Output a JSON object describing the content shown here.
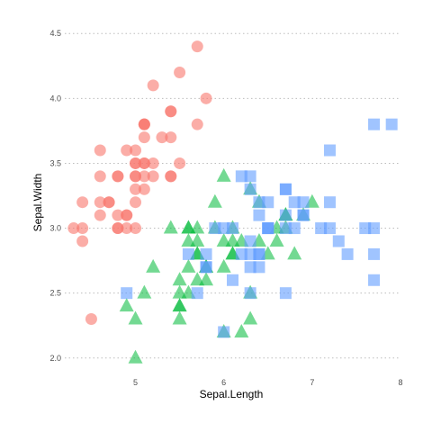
{
  "chart_data": {
    "type": "scatter",
    "title": "",
    "xlabel": "Sepal.Length",
    "ylabel": "Sepal.Width",
    "xlim": [
      4.2,
      8.0
    ],
    "ylim": [
      1.95,
      4.55
    ],
    "x_ticks": [
      "5",
      "6",
      "7",
      "8"
    ],
    "y_ticks": [
      "2.0",
      "2.5",
      "3.0",
      "3.5",
      "4.0",
      "4.5"
    ],
    "grid": {
      "horizontal": true,
      "vertical": false,
      "style": "dotted"
    },
    "legend": "none",
    "series": [
      {
        "color": "#F8766D",
        "marker": "circle",
        "opacity": 0.6,
        "points": [
          [
            5.1,
            3.5
          ],
          [
            4.9,
            3.0
          ],
          [
            4.7,
            3.2
          ],
          [
            4.6,
            3.1
          ],
          [
            5.0,
            3.6
          ],
          [
            5.4,
            3.9
          ],
          [
            4.6,
            3.4
          ],
          [
            5.0,
            3.4
          ],
          [
            4.4,
            2.9
          ],
          [
            4.9,
            3.1
          ],
          [
            5.4,
            3.7
          ],
          [
            4.8,
            3.4
          ],
          [
            4.8,
            3.0
          ],
          [
            4.3,
            3.0
          ],
          [
            5.8,
            4.0
          ],
          [
            5.7,
            4.4
          ],
          [
            5.4,
            3.9
          ],
          [
            5.1,
            3.5
          ],
          [
            5.7,
            3.8
          ],
          [
            5.1,
            3.8
          ],
          [
            5.4,
            3.4
          ],
          [
            5.1,
            3.7
          ],
          [
            4.6,
            3.6
          ],
          [
            5.1,
            3.3
          ],
          [
            4.8,
            3.4
          ],
          [
            5.0,
            3.0
          ],
          [
            5.0,
            3.4
          ],
          [
            5.2,
            3.5
          ],
          [
            5.2,
            3.4
          ],
          [
            4.7,
            3.2
          ],
          [
            4.8,
            3.1
          ],
          [
            5.4,
            3.4
          ],
          [
            5.2,
            4.1
          ],
          [
            5.5,
            4.2
          ],
          [
            4.9,
            3.1
          ],
          [
            5.0,
            3.2
          ],
          [
            5.5,
            3.5
          ],
          [
            4.9,
            3.6
          ],
          [
            4.4,
            3.0
          ],
          [
            5.1,
            3.4
          ],
          [
            5.0,
            3.5
          ],
          [
            4.5,
            2.3
          ],
          [
            4.4,
            3.2
          ],
          [
            5.0,
            3.5
          ],
          [
            5.1,
            3.8
          ],
          [
            4.8,
            3.0
          ],
          [
            5.1,
            3.8
          ],
          [
            4.6,
            3.2
          ],
          [
            5.3,
            3.7
          ],
          [
            5.0,
            3.3
          ]
        ]
      },
      {
        "color": "#00BA38",
        "marker": "triangle",
        "opacity": 0.55,
        "points": [
          [
            7.0,
            3.2
          ],
          [
            6.4,
            3.2
          ],
          [
            6.9,
            3.1
          ],
          [
            5.5,
            2.3
          ],
          [
            6.5,
            2.8
          ],
          [
            5.7,
            2.8
          ],
          [
            6.3,
            3.3
          ],
          [
            4.9,
            2.4
          ],
          [
            6.6,
            2.9
          ],
          [
            5.2,
            2.7
          ],
          [
            5.0,
            2.0
          ],
          [
            5.9,
            3.0
          ],
          [
            6.0,
            2.2
          ],
          [
            6.1,
            2.9
          ],
          [
            5.6,
            2.9
          ],
          [
            6.7,
            3.1
          ],
          [
            5.6,
            3.0
          ],
          [
            5.8,
            2.7
          ],
          [
            6.2,
            2.2
          ],
          [
            5.6,
            2.5
          ],
          [
            5.9,
            3.2
          ],
          [
            6.1,
            2.8
          ],
          [
            6.3,
            2.5
          ],
          [
            6.1,
            2.8
          ],
          [
            6.4,
            2.9
          ],
          [
            6.6,
            3.0
          ],
          [
            6.8,
            2.8
          ],
          [
            6.7,
            3.0
          ],
          [
            6.0,
            2.9
          ],
          [
            5.7,
            2.6
          ],
          [
            5.5,
            2.4
          ],
          [
            5.5,
            2.4
          ],
          [
            5.8,
            2.7
          ],
          [
            6.0,
            2.7
          ],
          [
            5.4,
            3.0
          ],
          [
            6.0,
            3.4
          ],
          [
            6.7,
            3.1
          ],
          [
            6.3,
            2.3
          ],
          [
            5.6,
            3.0
          ],
          [
            5.5,
            2.5
          ],
          [
            5.5,
            2.6
          ],
          [
            6.1,
            3.0
          ],
          [
            5.8,
            2.6
          ],
          [
            5.0,
            2.3
          ],
          [
            5.6,
            2.7
          ],
          [
            5.7,
            3.0
          ],
          [
            5.7,
            2.9
          ],
          [
            6.2,
            2.9
          ],
          [
            5.1,
            2.5
          ],
          [
            5.7,
            2.8
          ]
        ]
      },
      {
        "color": "#619CFF",
        "marker": "square",
        "opacity": 0.6,
        "points": [
          [
            6.3,
            3.3
          ],
          [
            5.8,
            2.7
          ],
          [
            7.1,
            3.0
          ],
          [
            6.3,
            2.9
          ],
          [
            6.5,
            3.0
          ],
          [
            7.6,
            3.0
          ],
          [
            4.9,
            2.5
          ],
          [
            7.3,
            2.9
          ],
          [
            6.7,
            2.5
          ],
          [
            7.2,
            3.6
          ],
          [
            6.5,
            3.2
          ],
          [
            6.4,
            2.7
          ],
          [
            6.8,
            3.0
          ],
          [
            5.7,
            2.5
          ],
          [
            5.8,
            2.8
          ],
          [
            6.4,
            3.2
          ],
          [
            6.5,
            3.0
          ],
          [
            7.7,
            3.8
          ],
          [
            7.7,
            2.6
          ],
          [
            6.0,
            2.2
          ],
          [
            6.9,
            3.2
          ],
          [
            5.6,
            2.8
          ],
          [
            7.7,
            2.8
          ],
          [
            6.3,
            2.7
          ],
          [
            6.7,
            3.3
          ],
          [
            7.2,
            3.2
          ],
          [
            6.2,
            2.8
          ],
          [
            6.1,
            3.0
          ],
          [
            6.4,
            2.8
          ],
          [
            7.2,
            3.0
          ],
          [
            7.4,
            2.8
          ],
          [
            7.9,
            3.8
          ],
          [
            6.4,
            2.8
          ],
          [
            6.3,
            2.8
          ],
          [
            6.1,
            2.6
          ],
          [
            7.7,
            3.0
          ],
          [
            6.3,
            3.4
          ],
          [
            6.4,
            3.1
          ],
          [
            6.0,
            3.0
          ],
          [
            6.9,
            3.1
          ],
          [
            6.7,
            3.1
          ],
          [
            6.9,
            3.1
          ],
          [
            5.8,
            2.7
          ],
          [
            6.8,
            3.2
          ],
          [
            6.7,
            3.3
          ],
          [
            6.7,
            3.0
          ],
          [
            6.3,
            2.5
          ],
          [
            6.5,
            3.0
          ],
          [
            6.2,
            3.4
          ],
          [
            5.9,
            3.0
          ]
        ]
      }
    ]
  }
}
